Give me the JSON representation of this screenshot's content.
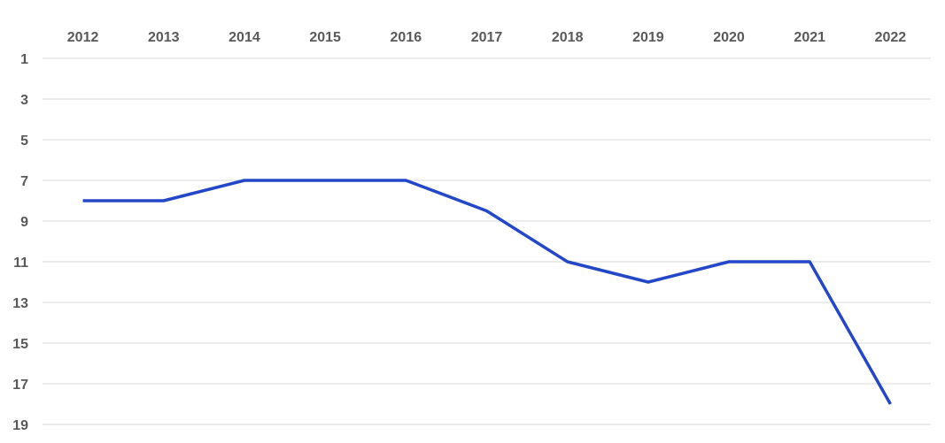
{
  "chart_data": {
    "type": "line",
    "categories": [
      "2012",
      "2013",
      "2014",
      "2015",
      "2016",
      "2017",
      "2018",
      "2019",
      "2020",
      "2021",
      "2022"
    ],
    "series": [
      {
        "color": "#2447c9",
        "values": [
          8,
          8,
          7,
          7,
          7,
          8.5,
          11,
          12,
          11,
          11,
          18
        ]
      }
    ],
    "ylim": [
      1,
      19
    ],
    "yticks": [
      1,
      3,
      5,
      7,
      9,
      11,
      13,
      15,
      17,
      19
    ],
    "y_inverted": true,
    "x_axis_position": "top",
    "grid": true
  }
}
